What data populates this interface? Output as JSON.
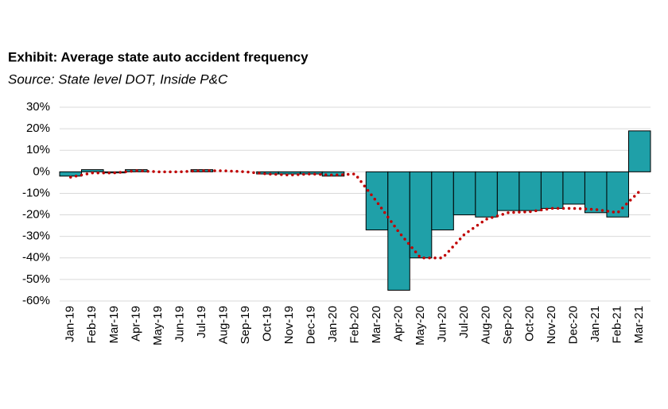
{
  "chart_data": {
    "type": "combo",
    "title": "Exhibit: Average state auto accident frequency",
    "subtitle": "Source: State level DOT, Inside P&C",
    "categories": [
      "Jan-19",
      "Feb-19",
      "Mar-19",
      "Apr-19",
      "May-19",
      "Jun-19",
      "Jul-19",
      "Aug-19",
      "Sep-19",
      "Oct-19",
      "Nov-19",
      "Dec-19",
      "Jan-20",
      "Feb-20",
      "Mar-20",
      "Apr-20",
      "May-20",
      "Jun-20",
      "Jul-20",
      "Aug-20",
      "Sep-20",
      "Oct-20",
      "Nov-20",
      "Dec-20",
      "Jan-21",
      "Feb-21",
      "Mar-21"
    ],
    "series": [
      {
        "type": "bar",
        "color": "#1fa0a8",
        "values": [
          -2,
          1,
          -0.5,
          1,
          0,
          0,
          1,
          0,
          0,
          -1,
          -1,
          -1,
          -2,
          0,
          -27,
          -55,
          -40,
          -27,
          -20,
          -21,
          -18,
          -18,
          -17,
          -15,
          -19,
          -21,
          19
        ]
      },
      {
        "type": "line",
        "color": "#c00000",
        "values": [
          -2.5,
          -0.5,
          -0.5,
          0.5,
          0,
          0,
          0.5,
          0.5,
          0,
          -1,
          -1.5,
          -1,
          -1.5,
          -1,
          -14,
          -28,
          -40,
          -40,
          -29,
          -22,
          -19,
          -18.5,
          -17,
          -17,
          -17.5,
          -19,
          -9
        ]
      }
    ],
    "ylim": [
      -60,
      30
    ],
    "yticks": [
      {
        "value": -60,
        "label": "-60%"
      },
      {
        "value": -50,
        "label": "-50%"
      },
      {
        "value": -40,
        "label": "-40%"
      },
      {
        "value": -30,
        "label": "-30%"
      },
      {
        "value": -20,
        "label": "-20%"
      },
      {
        "value": -10,
        "label": "-10%"
      },
      {
        "value": 0,
        "label": "0%"
      },
      {
        "value": 10,
        "label": "10%"
      },
      {
        "value": 20,
        "label": "20%"
      },
      {
        "value": 30,
        "label": "30%"
      }
    ],
    "grid": true
  }
}
